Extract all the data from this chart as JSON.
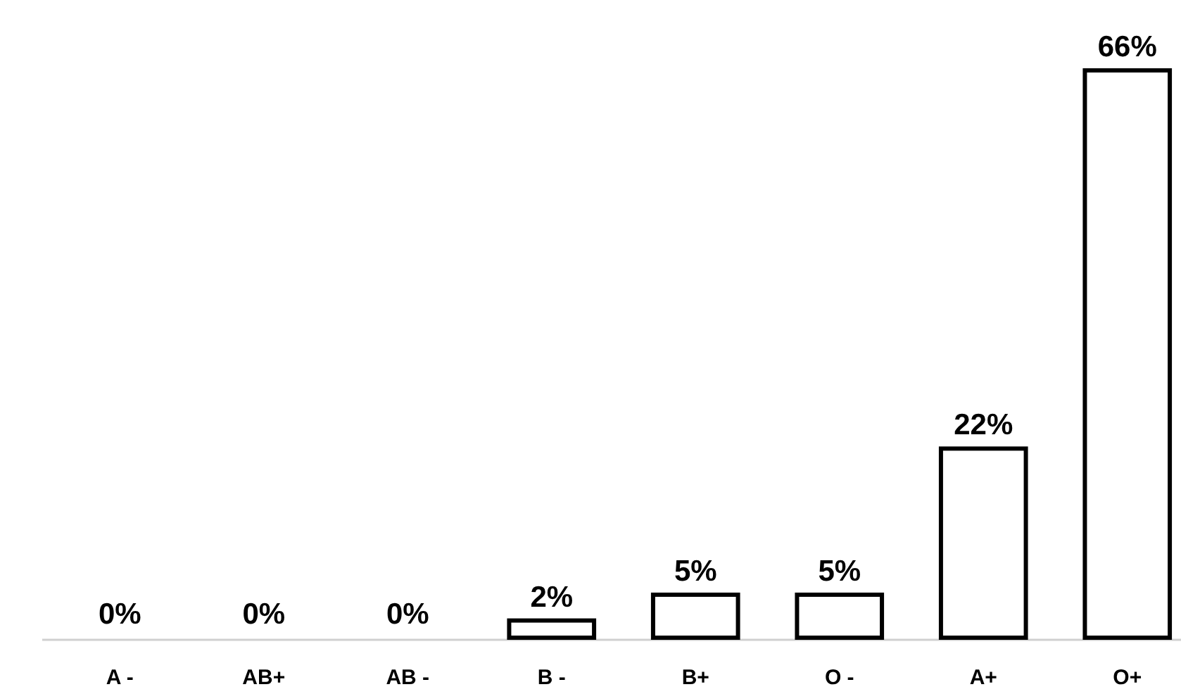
{
  "chart_data": {
    "type": "bar",
    "categories": [
      "A -",
      "AB+",
      "AB -",
      "B -",
      "B+",
      "O -",
      "A+",
      "O+"
    ],
    "values": [
      0,
      0,
      0,
      2,
      5,
      5,
      22,
      66
    ],
    "value_labels": [
      "0%",
      "0%",
      "0%",
      "2%",
      "5%",
      "5%",
      "22%",
      "66%"
    ],
    "color": "#ffffff"
  }
}
